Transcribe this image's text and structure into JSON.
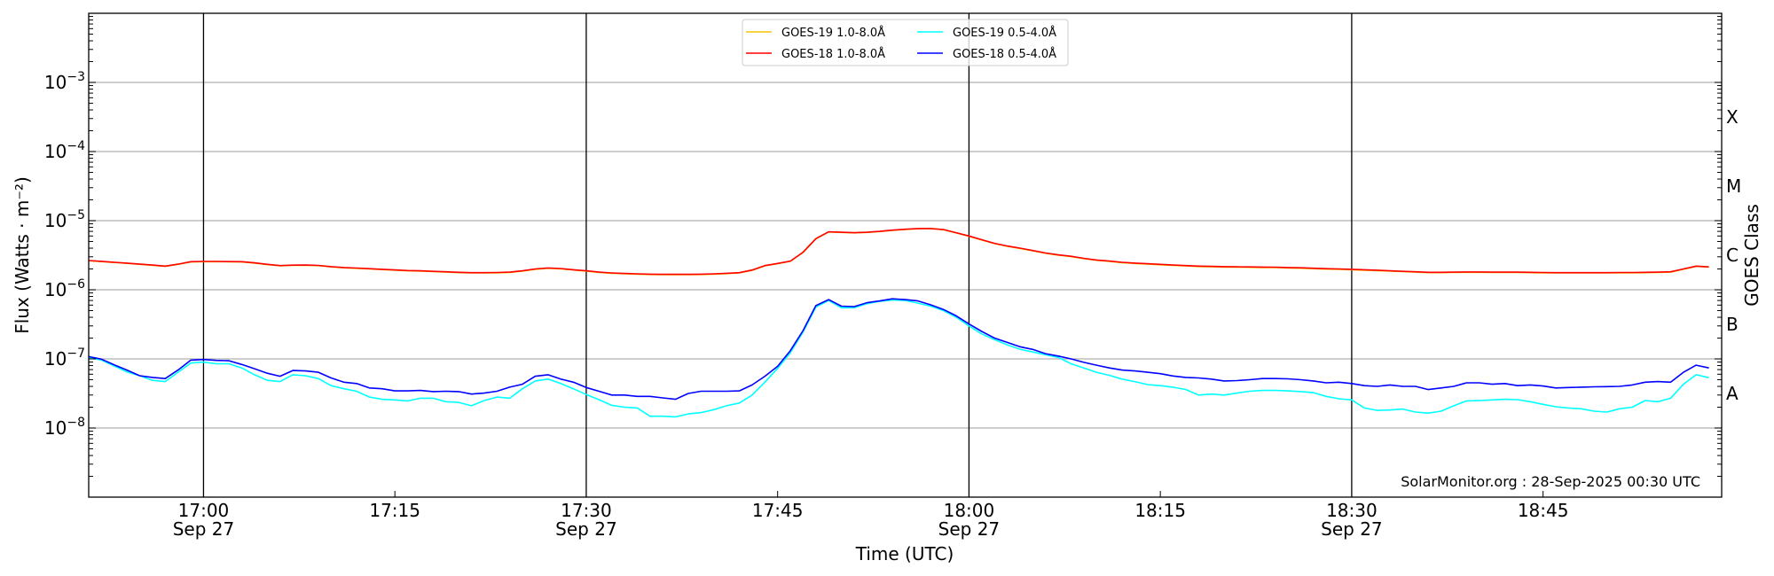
{
  "chart_data": {
    "type": "line",
    "title": "",
    "xlabel": "Time (UTC)",
    "ylabel": "Flux (Watts · m⁻²)",
    "ylabel_right": "GOES Class",
    "yscale": "log",
    "xlim": [
      "16:51",
      "18:59"
    ],
    "ylim": [
      1e-09,
      0.01
    ],
    "grid": true,
    "x_ticks": [
      {
        "time": "17:00",
        "label": "17:00",
        "date": "Sep 27"
      },
      {
        "time": "17:15",
        "label": "17:15",
        "date": ""
      },
      {
        "time": "17:30",
        "label": "17:30",
        "date": "Sep 27"
      },
      {
        "time": "17:45",
        "label": "17:45",
        "date": ""
      },
      {
        "time": "18:00",
        "label": "18:00",
        "date": "Sep 27"
      },
      {
        "time": "18:15",
        "label": "18:15",
        "date": ""
      },
      {
        "time": "18:30",
        "label": "18:30",
        "date": "Sep 27"
      },
      {
        "time": "18:45",
        "label": "18:45",
        "date": ""
      }
    ],
    "y_ticks": [
      {
        "value": 1e-08,
        "base": "10",
        "exp": "−8"
      },
      {
        "value": 1e-07,
        "base": "10",
        "exp": "−7"
      },
      {
        "value": 1e-06,
        "base": "10",
        "exp": "−6"
      },
      {
        "value": 1e-05,
        "base": "10",
        "exp": "−5"
      },
      {
        "value": 0.0001,
        "base": "10",
        "exp": "−4"
      },
      {
        "value": 0.001,
        "base": "10",
        "exp": "−3"
      }
    ],
    "class_labels": [
      {
        "label": "A",
        "range": [
          1e-08,
          1e-07
        ]
      },
      {
        "label": "B",
        "range": [
          1e-07,
          1e-06
        ]
      },
      {
        "label": "C",
        "range": [
          1e-06,
          1e-05
        ]
      },
      {
        "label": "M",
        "range": [
          1e-05,
          0.0001
        ]
      },
      {
        "label": "X",
        "range": [
          0.0001,
          0.001
        ]
      }
    ],
    "legend": {
      "placement": "top-center",
      "columns": 2
    },
    "annotation": "SolarMonitor.org : 28-Sep-2025 00:30 UTC",
    "x_start": "16:51",
    "x_step_minutes": 1,
    "series": [
      {
        "name": "GOES-19 1.0-8.0Å",
        "color": "#f5c400",
        "value_scale": 1e-06,
        "values": [
          2.63,
          2.56,
          2.48,
          2.41,
          2.33,
          2.26,
          2.18,
          2.33,
          2.53,
          2.55,
          2.55,
          2.54,
          2.53,
          2.43,
          2.31,
          2.22,
          2.25,
          2.26,
          2.23,
          2.14,
          2.08,
          2.04,
          2.0,
          1.96,
          1.92,
          1.88,
          1.86,
          1.83,
          1.8,
          1.77,
          1.75,
          1.75,
          1.76,
          1.78,
          1.86,
          1.98,
          2.05,
          2.01,
          1.93,
          1.86,
          1.78,
          1.73,
          1.7,
          1.68,
          1.66,
          1.65,
          1.65,
          1.65,
          1.66,
          1.68,
          1.71,
          1.75,
          1.91,
          2.22,
          2.38,
          2.58,
          3.47,
          5.45,
          6.85,
          6.75,
          6.65,
          6.75,
          6.95,
          7.25,
          7.45,
          7.65,
          7.65,
          7.4,
          6.65,
          5.95,
          5.25,
          4.65,
          4.25,
          3.96,
          3.66,
          3.37,
          3.17,
          3.02,
          2.82,
          2.67,
          2.57,
          2.47,
          2.4,
          2.35,
          2.3,
          2.25,
          2.21,
          2.17,
          2.15,
          2.13,
          2.12,
          2.11,
          2.1,
          2.09,
          2.07,
          2.05,
          2.02,
          1.99,
          1.97,
          1.95,
          1.92,
          1.89,
          1.86,
          1.83,
          1.8,
          1.77,
          1.77,
          1.78,
          1.79,
          1.79,
          1.78,
          1.78,
          1.78,
          1.77,
          1.76,
          1.75,
          1.75,
          1.75,
          1.75,
          1.75,
          1.76,
          1.76,
          1.77,
          1.78,
          1.8,
          1.98,
          2.18,
          2.12
        ]
      },
      {
        "name": "GOES-18 1.0-8.0Å",
        "color": "#ff0000",
        "value_scale": 1e-06,
        "values": [
          2.65,
          2.58,
          2.5,
          2.43,
          2.35,
          2.28,
          2.2,
          2.35,
          2.55,
          2.57,
          2.57,
          2.56,
          2.55,
          2.45,
          2.33,
          2.24,
          2.27,
          2.28,
          2.25,
          2.16,
          2.1,
          2.06,
          2.02,
          1.98,
          1.94,
          1.9,
          1.88,
          1.85,
          1.82,
          1.79,
          1.77,
          1.77,
          1.78,
          1.8,
          1.88,
          2.0,
          2.07,
          2.03,
          1.95,
          1.88,
          1.8,
          1.75,
          1.72,
          1.7,
          1.68,
          1.67,
          1.67,
          1.67,
          1.68,
          1.7,
          1.73,
          1.77,
          1.93,
          2.24,
          2.4,
          2.6,
          3.5,
          5.5,
          6.9,
          6.8,
          6.7,
          6.8,
          7.0,
          7.3,
          7.5,
          7.7,
          7.7,
          7.45,
          6.7,
          6.0,
          5.3,
          4.7,
          4.3,
          4.0,
          3.7,
          3.4,
          3.2,
          3.05,
          2.85,
          2.7,
          2.6,
          2.5,
          2.43,
          2.38,
          2.33,
          2.28,
          2.24,
          2.2,
          2.18,
          2.16,
          2.15,
          2.14,
          2.13,
          2.12,
          2.1,
          2.08,
          2.05,
          2.02,
          2.0,
          1.98,
          1.95,
          1.92,
          1.88,
          1.85,
          1.82,
          1.79,
          1.79,
          1.8,
          1.81,
          1.81,
          1.8,
          1.8,
          1.8,
          1.79,
          1.78,
          1.77,
          1.77,
          1.77,
          1.77,
          1.77,
          1.78,
          1.78,
          1.79,
          1.8,
          1.82,
          2.0,
          2.2,
          2.14
        ]
      },
      {
        "name": "GOES-19 0.5-4.0Å",
        "color": "#00ffff",
        "value_scale": 1e-08,
        "values": [
          10.4,
          9.6,
          7.9,
          6.5,
          5.7,
          4.9,
          4.7,
          6.4,
          8.7,
          9.0,
          8.5,
          8.5,
          7.4,
          5.9,
          4.9,
          4.7,
          5.9,
          5.7,
          5.2,
          4.1,
          3.7,
          3.4,
          2.8,
          2.6,
          2.55,
          2.47,
          2.7,
          2.7,
          2.4,
          2.35,
          2.1,
          2.5,
          2.8,
          2.7,
          3.7,
          4.8,
          5.1,
          4.4,
          3.7,
          3.05,
          2.57,
          2.13,
          2.0,
          1.95,
          1.48,
          1.48,
          1.45,
          1.6,
          1.67,
          1.84,
          2.1,
          2.3,
          3.0,
          4.6,
          7.3,
          12.3,
          24.5,
          56,
          70,
          55,
          55,
          63,
          68,
          71,
          70,
          64,
          58,
          50,
          40,
          30,
          23,
          19,
          16,
          13.8,
          12.6,
          11.5,
          10.5,
          8.5,
          7.4,
          6.4,
          5.8,
          5.1,
          4.7,
          4.25,
          4.1,
          3.9,
          3.6,
          3.0,
          3.1,
          3.0,
          3.2,
          3.4,
          3.5,
          3.5,
          3.45,
          3.36,
          3.25,
          2.87,
          2.65,
          2.55,
          1.95,
          1.8,
          1.82,
          1.88,
          1.7,
          1.64,
          1.75,
          2.1,
          2.47,
          2.5,
          2.55,
          2.6,
          2.57,
          2.4,
          2.2,
          2.03,
          1.95,
          1.9,
          1.75,
          1.7,
          1.9,
          2.0,
          2.5,
          2.4,
          2.7,
          4.3,
          5.9,
          5.35
        ]
      },
      {
        "name": "GOES-18 0.5-4.0Å",
        "color": "#0000ff",
        "value_scale": 1e-08,
        "values": [
          10.8,
          9.9,
          8.2,
          6.9,
          5.7,
          5.4,
          5.2,
          6.9,
          9.6,
          9.8,
          9.5,
          9.4,
          8.3,
          7.2,
          6.2,
          5.6,
          6.8,
          6.7,
          6.4,
          5.3,
          4.6,
          4.4,
          3.8,
          3.7,
          3.45,
          3.45,
          3.5,
          3.36,
          3.4,
          3.36,
          3.1,
          3.2,
          3.4,
          3.9,
          4.3,
          5.6,
          5.9,
          5.1,
          4.6,
          3.85,
          3.4,
          3.0,
          3.0,
          2.87,
          2.87,
          2.73,
          2.6,
          3.16,
          3.4,
          3.4,
          3.4,
          3.45,
          4.2,
          5.6,
          7.8,
          13.2,
          25.7,
          59,
          72,
          58,
          57,
          65,
          69,
          74,
          72,
          69,
          60.5,
          52,
          42,
          32,
          25,
          20,
          17.3,
          15,
          13.7,
          11.9,
          11,
          10,
          8.9,
          8.1,
          7.4,
          6.9,
          6.7,
          6.4,
          6.1,
          5.65,
          5.4,
          5.3,
          5.1,
          4.8,
          4.85,
          5.0,
          5.2,
          5.2,
          5.15,
          5.0,
          4.8,
          4.5,
          4.6,
          4.4,
          4.1,
          4.0,
          4.2,
          4.0,
          4.0,
          3.6,
          3.8,
          4.0,
          4.5,
          4.5,
          4.3,
          4.4,
          4.1,
          4.2,
          4.05,
          3.8,
          3.85,
          3.9,
          3.95,
          3.97,
          4.0,
          4.2,
          4.6,
          4.7,
          4.6,
          6.4,
          8.1,
          7.4
        ]
      }
    ]
  }
}
